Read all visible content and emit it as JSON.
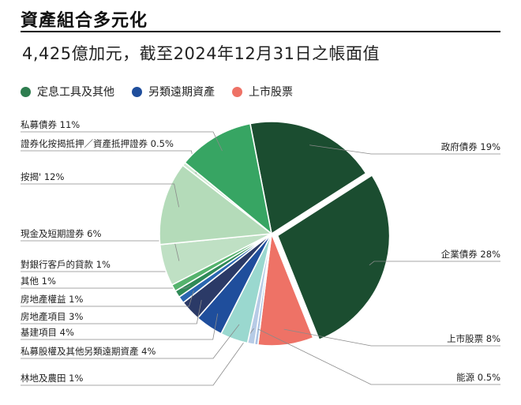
{
  "title": "資產組合多元化",
  "subtitle": "4,425億加元，截至2024年12月31日之帳面值",
  "legend": [
    {
      "label": "定息工具及其他",
      "color": "#2e7d4f"
    },
    {
      "label": "另類遠期資產",
      "color": "#1f4e9c"
    },
    {
      "label": "上市股票",
      "color": "#ee7266"
    }
  ],
  "chart_data": {
    "type": "pie",
    "title": "",
    "slices": [
      {
        "label": "政府債券 19%",
        "value": 19,
        "color": "#1b4d30",
        "exploded": false
      },
      {
        "label": "企業債券 28%",
        "value": 28,
        "color": "#1b4d30",
        "exploded": true
      },
      {
        "label": "上市股票 8%",
        "value": 8,
        "color": "#ee7266",
        "exploded": false
      },
      {
        "label": "能源 0.5%",
        "value": 0.5,
        "color": "#a9c1e3",
        "exploded": false
      },
      {
        "label": "林地及農田 1%",
        "value": 1,
        "color": "#b7cbe6",
        "exploded": false
      },
      {
        "label": "私募股權及其他另類遠期資產 4%",
        "value": 4,
        "color": "#9ad8cf",
        "exploded": false
      },
      {
        "label": "基建項目 4%",
        "value": 4,
        "color": "#1f4e9c",
        "exploded": false
      },
      {
        "label": "房地產項目 3%",
        "value": 3,
        "color": "#2b3a67",
        "exploded": false
      },
      {
        "label": "房地產權益 1%",
        "value": 1,
        "color": "#2a66b0",
        "exploded": false
      },
      {
        "label": "其他 1%",
        "value": 1,
        "color": "#2f8a57",
        "exploded": false
      },
      {
        "label": "對銀行客戶的貸款 1%",
        "value": 1,
        "color": "#55b36d",
        "exploded": false
      },
      {
        "label": "現金及短期證券 6%",
        "value": 6,
        "color": "#bfe0c4",
        "exploded": false
      },
      {
        "label": "按揭' 12%",
        "value": 12,
        "color": "#b4dbb9",
        "exploded": false
      },
      {
        "label": "證券化按揭抵押／資產抵押證券 0.5%",
        "value": 0.5,
        "color": "#cde8d0",
        "exploded": false
      },
      {
        "label": "私募債券 11%",
        "value": 11,
        "color": "#37a563",
        "exploded": false
      }
    ]
  }
}
